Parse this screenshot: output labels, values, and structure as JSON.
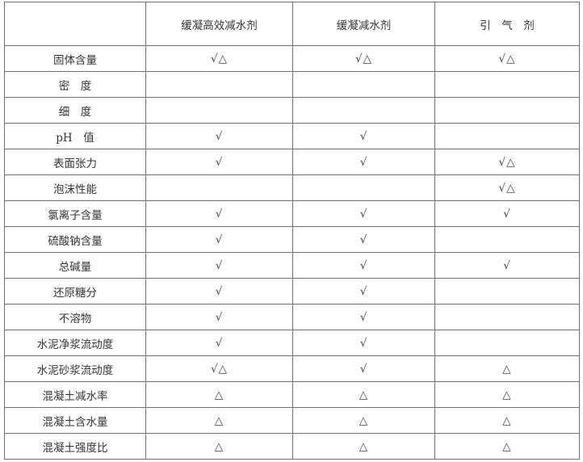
{
  "header": [
    "",
    "缓凝高效减水剂",
    "缓凝减水剂",
    "引　气　剂"
  ],
  "rows": [
    {
      "item": "固体含量",
      "c1": "√△",
      "c2": "√△",
      "c3": "√△"
    },
    {
      "item": "密　度",
      "c1": "",
      "c2": "",
      "c3": ""
    },
    {
      "item": "细　度",
      "c1": "",
      "c2": "",
      "c3": ""
    },
    {
      "item": "pH　值",
      "c1": "√",
      "c2": "√",
      "c3": ""
    },
    {
      "item": "表面张力",
      "c1": "√",
      "c2": "√",
      "c3": "√△"
    },
    {
      "item": "泡沫性能",
      "c1": "",
      "c2": "",
      "c3": "√△"
    },
    {
      "item": "氯离子含量",
      "c1": "√",
      "c2": "√",
      "c3": "√"
    },
    {
      "item": "硫酸钠含量",
      "c1": "√",
      "c2": "√",
      "c3": ""
    },
    {
      "item": "总碱量",
      "c1": "√",
      "c2": "√",
      "c3": "√"
    },
    {
      "item": "还原糖分",
      "c1": "√",
      "c2": "√",
      "c3": ""
    },
    {
      "item": "不溶物",
      "c1": "√",
      "c2": "√",
      "c3": ""
    },
    {
      "item": "水泥净浆流动度",
      "c1": "√",
      "c2": "√",
      "c3": ""
    },
    {
      "item": "水泥砂浆流动度",
      "c1": "√△",
      "c2": "√",
      "c3": "△"
    },
    {
      "item": "混凝土减水率",
      "c1": "△",
      "c2": "△",
      "c3": "△"
    },
    {
      "item": "混凝土含水量",
      "c1": "△",
      "c2": "△",
      "c3": "△"
    },
    {
      "item": "混凝土强度比",
      "c1": "△",
      "c2": "△",
      "c3": "△"
    }
  ]
}
